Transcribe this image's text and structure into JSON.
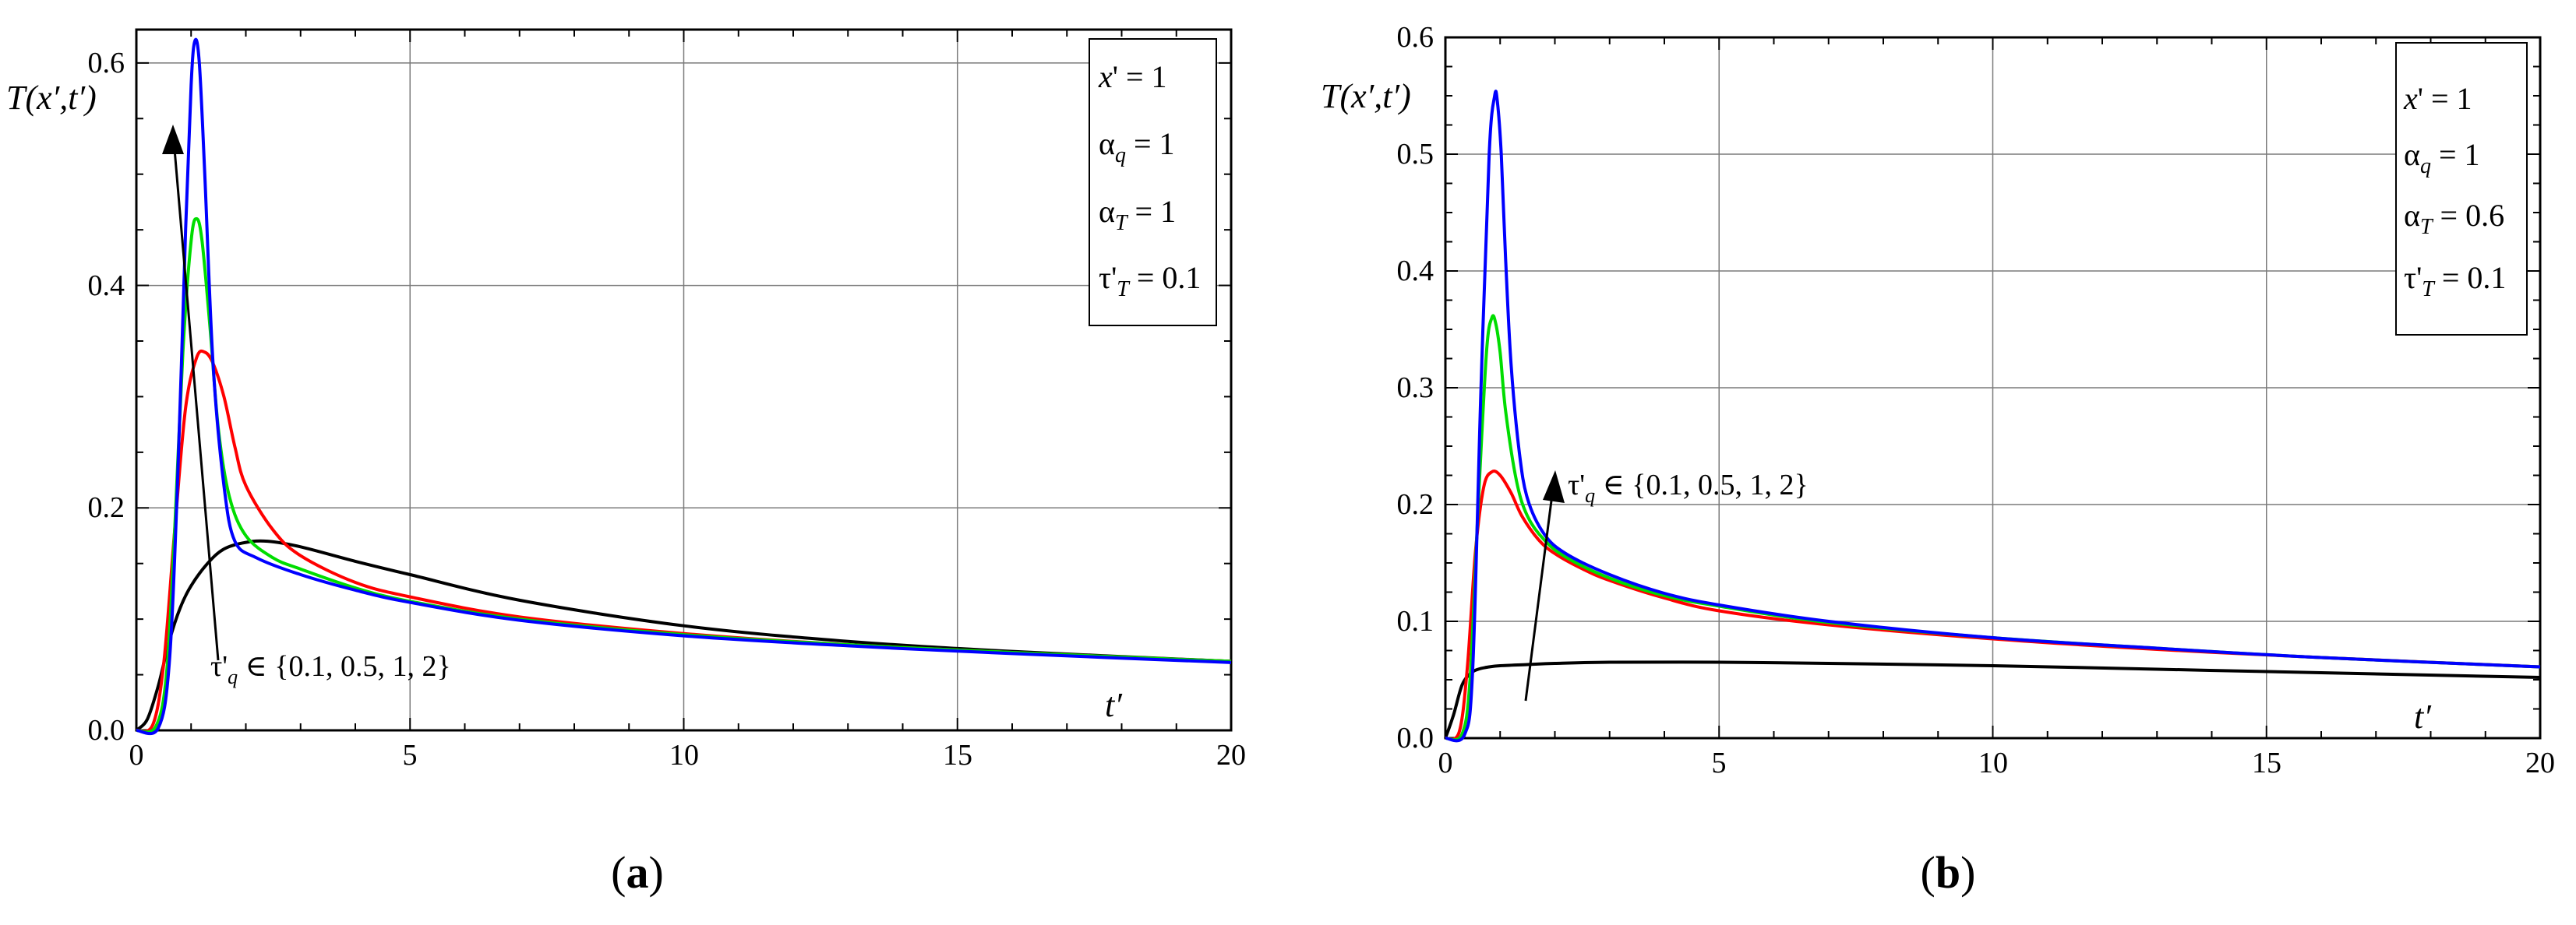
{
  "figure": {
    "panels": [
      {
        "label_open": "(",
        "label_letter": "a",
        "label_close": ")",
        "ylabel": "T(x′,t′)",
        "xlabel": "t′",
        "xticks": [
          "0",
          "5",
          "10",
          "15",
          "20"
        ],
        "yticks": [
          "0.0",
          "0.2",
          "0.4",
          "0.6"
        ],
        "legend": [
          "x' = 1",
          "αq = 1",
          "αT = 1",
          "τ'T = 0.1"
        ],
        "annotation": "τ'q  ∈ {0.1, 0.5, 1, 2}"
      },
      {
        "label_open": "(",
        "label_letter": "b",
        "label_close": ")",
        "ylabel": "T(x′,t′)",
        "xlabel": "t′",
        "xticks": [
          "0",
          "5",
          "10",
          "15",
          "20"
        ],
        "yticks": [
          "0.0",
          "0.1",
          "0.2",
          "0.3",
          "0.4",
          "0.5",
          "0.6"
        ],
        "legend": [
          "x' = 1",
          "αq = 1",
          "αT = 0.6",
          "τ'T = 0.1"
        ],
        "annotation": "τ'q  ∈ {0.1, 0.5, 1, 2}"
      }
    ]
  },
  "chart_data": [
    {
      "type": "line",
      "xlabel": "t′",
      "ylabel": "T(x′,t′)",
      "xlim": [
        0,
        20
      ],
      "ylim": [
        0,
        0.63
      ],
      "grid": true,
      "legend_position": "top-right",
      "series": [
        {
          "color": "#000000",
          "x": [
            0,
            0.2,
            0.4,
            0.6,
            0.8,
            1.0,
            1.3,
            1.6,
            2.0,
            2.4,
            3,
            4,
            5,
            7,
            10,
            13,
            16,
            20
          ],
          "y": [
            0,
            0.01,
            0.04,
            0.08,
            0.11,
            0.13,
            0.15,
            0.163,
            0.169,
            0.17,
            0.165,
            0.152,
            0.14,
            0.117,
            0.094,
            0.08,
            0.071,
            0.062
          ]
        },
        {
          "color": "#ff0000",
          "x": [
            0,
            0.3,
            0.5,
            0.7,
            0.9,
            1.1,
            1.25,
            1.4,
            1.6,
            1.8,
            2.0,
            2.5,
            3,
            4,
            5,
            7,
            10,
            13,
            16,
            20
          ],
          "y": [
            0,
            0.005,
            0.06,
            0.18,
            0.29,
            0.335,
            0.34,
            0.33,
            0.3,
            0.255,
            0.22,
            0.18,
            0.157,
            0.133,
            0.12,
            0.102,
            0.087,
            0.077,
            0.07,
            0.062
          ]
        },
        {
          "color": "#00dd00",
          "x": [
            0,
            0.35,
            0.55,
            0.7,
            0.85,
            1.0,
            1.1,
            1.2,
            1.35,
            1.5,
            1.7,
            2.0,
            2.5,
            3,
            4,
            5,
            7,
            10,
            13,
            16,
            20
          ],
          "y": [
            0,
            0.003,
            0.05,
            0.18,
            0.34,
            0.44,
            0.46,
            0.44,
            0.36,
            0.27,
            0.21,
            0.175,
            0.155,
            0.145,
            0.128,
            0.116,
            0.1,
            0.086,
            0.077,
            0.07,
            0.062
          ]
        },
        {
          "color": "#0000ff",
          "x": [
            0,
            0.4,
            0.6,
            0.75,
            0.9,
            1.0,
            1.07,
            1.15,
            1.25,
            1.4,
            1.6,
            1.8,
            2.2,
            3,
            4,
            5,
            7,
            10,
            13,
            16,
            20
          ],
          "y": [
            0,
            0.002,
            0.06,
            0.22,
            0.45,
            0.58,
            0.62,
            0.6,
            0.5,
            0.33,
            0.22,
            0.17,
            0.155,
            0.14,
            0.126,
            0.115,
            0.099,
            0.085,
            0.076,
            0.069,
            0.061
          ]
        }
      ]
    },
    {
      "type": "line",
      "xlabel": "t′",
      "ylabel": "T(x′,t′)",
      "xlim": [
        0,
        20
      ],
      "ylim": [
        0,
        0.6
      ],
      "grid": true,
      "legend_position": "top-right",
      "series": [
        {
          "color": "#000000",
          "x": [
            0,
            0.15,
            0.3,
            0.45,
            0.6,
            0.8,
            1.0,
            1.5,
            2,
            3,
            5,
            7,
            10,
            13,
            16,
            20
          ],
          "y": [
            0,
            0.02,
            0.045,
            0.055,
            0.059,
            0.061,
            0.062,
            0.063,
            0.064,
            0.065,
            0.065,
            0.064,
            0.062,
            0.059,
            0.056,
            0.052
          ]
        },
        {
          "color": "#ff0000",
          "x": [
            0,
            0.25,
            0.4,
            0.55,
            0.7,
            0.85,
            1.0,
            1.2,
            1.4,
            1.7,
            2.0,
            2.5,
            3,
            4,
            5,
            7,
            10,
            13,
            16,
            20
          ],
          "y": [
            0,
            0.005,
            0.06,
            0.16,
            0.215,
            0.228,
            0.225,
            0.21,
            0.19,
            0.17,
            0.158,
            0.145,
            0.135,
            0.12,
            0.109,
            0.097,
            0.085,
            0.076,
            0.069,
            0.061
          ]
        },
        {
          "color": "#00dd00",
          "x": [
            0,
            0.3,
            0.45,
            0.6,
            0.75,
            0.85,
            0.92,
            1.0,
            1.1,
            1.3,
            1.5,
            1.8,
            2.2,
            3,
            4,
            5,
            7,
            10,
            13,
            16,
            20
          ],
          "y": [
            0,
            0.003,
            0.05,
            0.2,
            0.33,
            0.36,
            0.355,
            0.33,
            0.28,
            0.22,
            0.19,
            0.17,
            0.155,
            0.137,
            0.122,
            0.113,
            0.099,
            0.086,
            0.077,
            0.069,
            0.061
          ]
        },
        {
          "color": "#0000ff",
          "x": [
            0,
            0.35,
            0.5,
            0.65,
            0.8,
            0.9,
            0.95,
            1.02,
            1.1,
            1.2,
            1.35,
            1.5,
            1.8,
            2.2,
            3,
            4,
            5,
            7,
            10,
            13,
            16,
            20
          ],
          "y": [
            0,
            0.003,
            0.06,
            0.3,
            0.5,
            0.55,
            0.545,
            0.5,
            0.41,
            0.32,
            0.245,
            0.205,
            0.175,
            0.158,
            0.14,
            0.124,
            0.114,
            0.1,
            0.086,
            0.077,
            0.069,
            0.061
          ]
        }
      ]
    }
  ]
}
